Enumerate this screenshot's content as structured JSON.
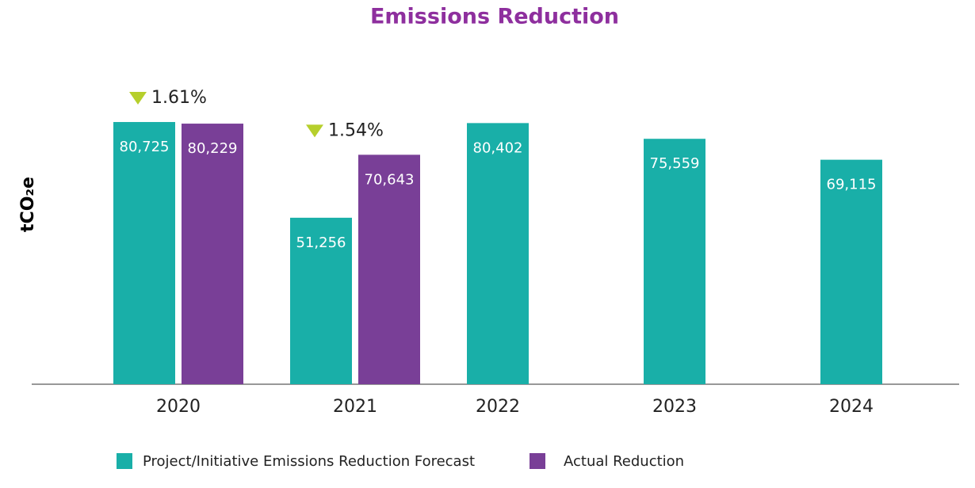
{
  "chart_data": {
    "type": "bar",
    "title": "Emissions Reduction",
    "y_label": "tCO₂e",
    "categories": [
      "2020",
      "2021",
      "2022",
      "2023",
      "2024"
    ],
    "series": [
      {
        "name": "Project/Initiative Emissions Reduction Forecast",
        "color": "#19afa8",
        "values": [
          80725,
          51256,
          80402,
          75559,
          69115
        ],
        "value_labels": [
          "80,725",
          "51,256",
          "80,402",
          "75,559",
          "69,115"
        ]
      },
      {
        "name": "Actual Reduction",
        "color": "#793f97",
        "values": [
          80229,
          70643,
          null,
          null,
          null
        ],
        "value_labels": [
          "80,229",
          "70,643",
          null,
          null,
          null
        ]
      }
    ],
    "annotations": [
      {
        "text": "1.61%",
        "category": "2020"
      },
      {
        "text": "1.54%",
        "category": "2021"
      }
    ],
    "annotation_color": "#b6cf2c",
    "title_color": "#8e2f9e",
    "ylim": [
      0,
      100000
    ],
    "legend": "bottom"
  }
}
